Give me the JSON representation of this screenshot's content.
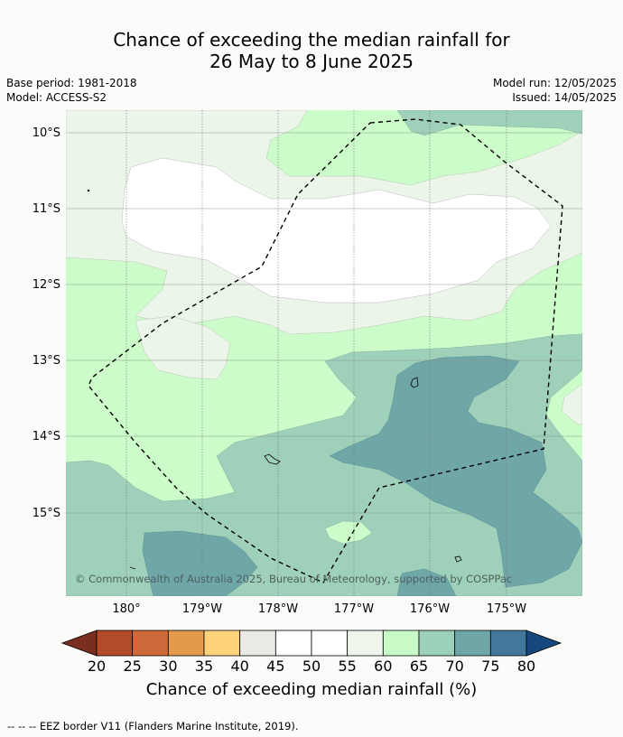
{
  "title": {
    "line1": "Chance of exceeding the median rainfall for",
    "line2": "26 May to 8 June 2025"
  },
  "meta": {
    "base_period": "Base period: 1981-2018",
    "model": "Model: ACCESS-S2",
    "model_run": "Model run: 12/05/2025",
    "issued": "Issued: 14/05/2025"
  },
  "map": {
    "lat_labels": [
      "10°S",
      "11°S",
      "12°S",
      "13°S",
      "14°S",
      "15°S"
    ],
    "lon_labels": [
      "180°",
      "179°W",
      "178°W",
      "177°W",
      "176°W",
      "175°W"
    ],
    "attribution": "© Commonwealth of Australia 2025, Bureau of Meteorology, supported by COSPPac"
  },
  "colorbar": {
    "ticks": [
      "20",
      "25",
      "30",
      "35",
      "40",
      "45",
      "50",
      "55",
      "60",
      "65",
      "70",
      "75",
      "80"
    ],
    "colors": [
      "#7a2e1f",
      "#b34a2a",
      "#d0693a",
      "#e39a4c",
      "#fdd27a",
      "#eceae4",
      "#ffffff",
      "#ffffff",
      "#eef6ec",
      "#c9fbc8",
      "#9dd0ba",
      "#6fa6a7",
      "#43789a",
      "#15497d"
    ],
    "title": "Chance of exceeding median rainfall (%)"
  },
  "legend": {
    "eez": "--  --  -- EEZ border V11 (Flanders Marine Institute, 2019)."
  },
  "colors": {
    "c55_60": "#ecf5ea",
    "c60_65": "#ccfcc9",
    "c65_70": "#9ed0ba",
    "c70_75": "#6fa6a8",
    "white": "#ffffff"
  }
}
